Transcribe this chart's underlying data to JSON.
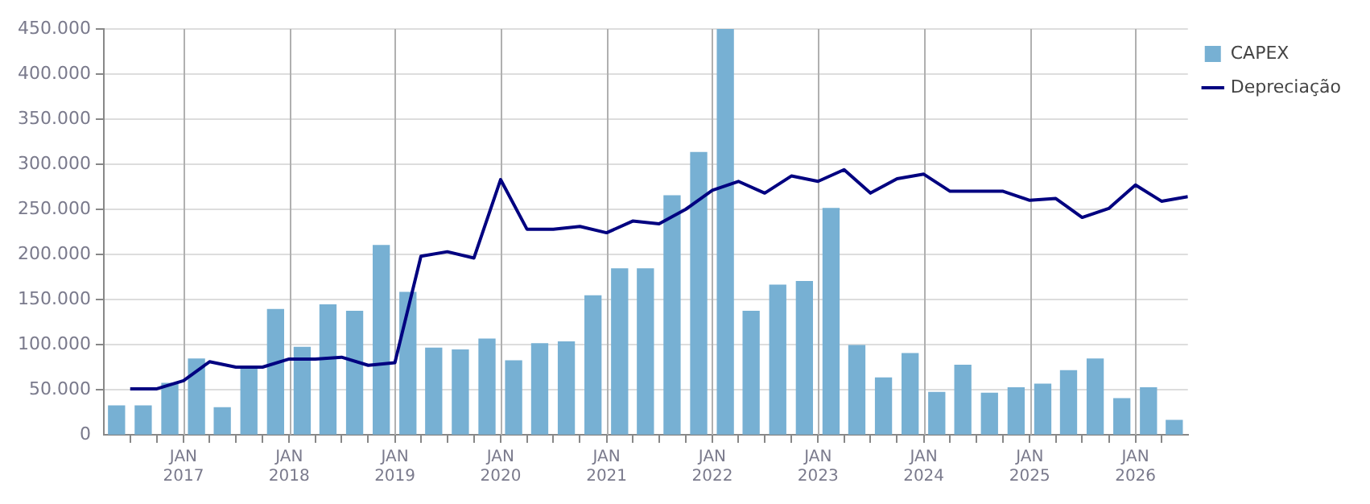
{
  "chart_data": {
    "type": "bar",
    "xlim": [
      "2016-04",
      "2026-07"
    ],
    "xticks": [
      {
        "value": "2016-07",
        "label": null
      },
      {
        "value": "2016-10",
        "label": null
      },
      {
        "value": "2017-01",
        "label": "JAN 2017"
      },
      {
        "value": "2017-04",
        "label": null
      },
      {
        "value": "2017-07",
        "label": null
      },
      {
        "value": "2017-10",
        "label": null
      },
      {
        "value": "2018-01",
        "label": "JAN 2018"
      },
      {
        "value": "2018-04",
        "label": null
      },
      {
        "value": "2018-07",
        "label": null
      },
      {
        "value": "2018-10",
        "label": null
      },
      {
        "value": "2019-01",
        "label": "JAN 2019"
      },
      {
        "value": "2019-04",
        "label": null
      },
      {
        "value": "2019-07",
        "label": null
      },
      {
        "value": "2019-10",
        "label": null
      },
      {
        "value": "2020-01",
        "label": "JAN 2020"
      },
      {
        "value": "2020-04",
        "label": null
      },
      {
        "value": "2020-07",
        "label": null
      },
      {
        "value": "2020-10",
        "label": null
      },
      {
        "value": "2021-01",
        "label": "JAN 2021"
      },
      {
        "value": "2021-04",
        "label": null
      },
      {
        "value": "2021-07",
        "label": null
      },
      {
        "value": "2021-10",
        "label": null
      },
      {
        "value": "2022-01",
        "label": "JAN 2022"
      },
      {
        "value": "2022-04",
        "label": null
      },
      {
        "value": "2022-07",
        "label": null
      },
      {
        "value": "2022-10",
        "label": null
      },
      {
        "value": "2023-01",
        "label": "JAN 2023"
      },
      {
        "value": "2023-04",
        "label": null
      },
      {
        "value": "2023-07",
        "label": null
      },
      {
        "value": "2023-10",
        "label": null
      },
      {
        "value": "2024-01",
        "label": "JAN 2024"
      },
      {
        "value": "2024-04",
        "label": null
      },
      {
        "value": "2024-07",
        "label": null
      },
      {
        "value": "2024-10",
        "label": null
      },
      {
        "value": "2025-01",
        "label": "JAN 2025"
      },
      {
        "value": "2025-04",
        "label": null
      },
      {
        "value": "2025-07",
        "label": null
      },
      {
        "value": "2025-10",
        "label": null
      },
      {
        "value": "2026-01",
        "label": "JAN 2026"
      },
      {
        "value": "2026-04",
        "label": null
      }
    ],
    "ylim": [
      0,
      450000
    ],
    "yticks": [
      {
        "value": 0,
        "label": "0"
      },
      {
        "value": 50000,
        "label": "50.000"
      },
      {
        "value": 100000,
        "label": "100.000"
      },
      {
        "value": 150000,
        "label": "150.000"
      },
      {
        "value": 200000,
        "label": "200.000"
      },
      {
        "value": 250000,
        "label": "250.000"
      },
      {
        "value": 300000,
        "label": "300.000"
      },
      {
        "value": 350000,
        "label": "350.000"
      },
      {
        "value": 400000,
        "label": "400.000"
      },
      {
        "value": 450000,
        "label": "450.000"
      }
    ],
    "grid": true,
    "legend": "top right",
    "series": [
      {
        "name": "CAPEX",
        "color": "#77b0d3",
        "x": [
          "2016-05-15",
          "2016-08-15",
          "2016-11-15",
          "2017-02-15",
          "2017-05-15",
          "2017-08-15",
          "2017-11-15",
          "2018-02-15",
          "2018-05-15",
          "2018-08-15",
          "2018-11-15",
          "2019-02-15",
          "2019-05-15",
          "2019-08-15",
          "2019-11-15",
          "2020-02-15",
          "2020-05-15",
          "2020-08-15",
          "2020-11-15",
          "2021-02-15",
          "2021-05-15",
          "2021-08-15",
          "2021-11-15",
          "2022-02-15",
          "2022-05-15",
          "2022-08-15",
          "2022-11-15",
          "2023-02-15",
          "2023-05-15",
          "2023-08-15",
          "2023-11-15",
          "2024-02-15",
          "2024-05-15",
          "2024-08-15",
          "2024-11-15",
          "2025-02-15",
          "2025-05-15",
          "2025-08-15",
          "2025-11-15",
          "2026-02-15",
          "2026-05-15"
        ],
        "values": [
          32000,
          32000,
          57000,
          84000,
          30000,
          75000,
          139000,
          97000,
          144000,
          137000,
          210000,
          158000,
          96000,
          94000,
          106000,
          82000,
          101000,
          103000,
          154000,
          184000,
          184000,
          265000,
          313000,
          450000,
          137000,
          166000,
          170000,
          251000,
          99000,
          63000,
          90000,
          47000,
          77000,
          46000,
          52000,
          56000,
          71000,
          84000,
          40000,
          52000,
          16000
        ]
      },
      {
        "name": "Depreciação",
        "type": "line",
        "color": "#000080",
        "marker": "none",
        "x": [
          "2016-07",
          "2016-10",
          "2017-01",
          "2017-04",
          "2017-07",
          "2017-10",
          "2018-01",
          "2018-04",
          "2018-07",
          "2018-10",
          "2019-01",
          "2019-04",
          "2019-07",
          "2019-10",
          "2020-01",
          "2020-04",
          "2020-07",
          "2020-10",
          "2021-01",
          "2021-04",
          "2021-07",
          "2021-10",
          "2022-01",
          "2022-04",
          "2022-07",
          "2022-10",
          "2023-01",
          "2023-04",
          "2023-07",
          "2023-10",
          "2024-01",
          "2024-04",
          "2024-07",
          "2024-10",
          "2025-01",
          "2025-04",
          "2025-07",
          "2025-10",
          "2026-01",
          "2026-04",
          "2026-07"
        ],
        "values": [
          51000,
          51000,
          60000,
          81000,
          75000,
          75000,
          84000,
          84000,
          86000,
          77000,
          80000,
          198000,
          203000,
          196000,
          283000,
          228000,
          228000,
          231000,
          224000,
          237000,
          234000,
          250000,
          271000,
          281000,
          268000,
          287000,
          281000,
          294000,
          268000,
          284000,
          289000,
          270000,
          270000,
          270000,
          260000,
          262000,
          241000,
          251000,
          277000,
          259000,
          264000
        ]
      }
    ]
  }
}
